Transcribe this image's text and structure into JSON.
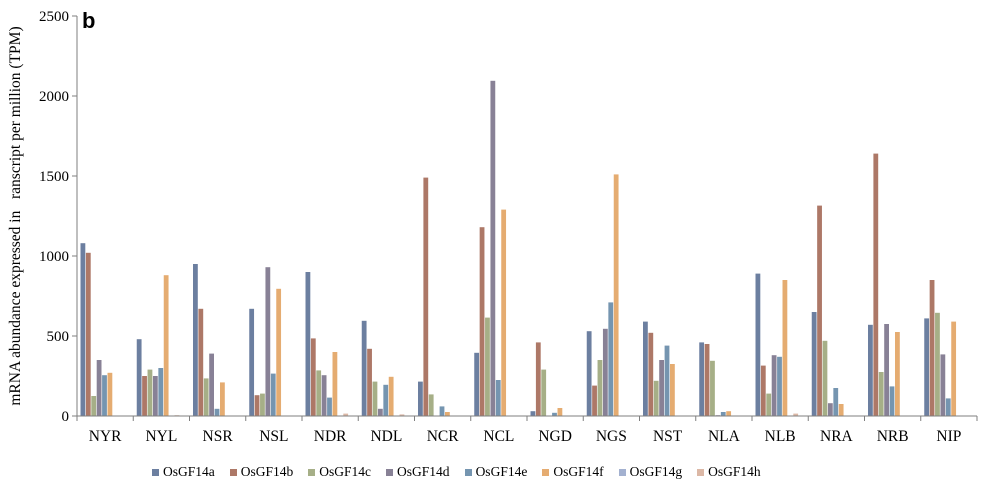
{
  "chart_data": {
    "type": "bar",
    "panel_label": "b",
    "ylabel": "mRNA abundance expressed in   ranscript per million (TPM)",
    "xlabel": "",
    "ylim": [
      0,
      2500
    ],
    "yticks": [
      "0",
      "500",
      "1000",
      "1500",
      "2000",
      "2500"
    ],
    "grid": false,
    "legend_position": "bottom",
    "categories": [
      "NYR",
      "NYL",
      "NSR",
      "NSL",
      "NDR",
      "NDL",
      "NCR",
      "NCL",
      "NGD",
      "NGS",
      "NST",
      "NLA",
      "NLB",
      "NRA",
      "NRB",
      "NIP"
    ],
    "series": [
      {
        "name": "OsGF14a",
        "color": "#6c7fa0",
        "values": [
          1080,
          480,
          950,
          670,
          900,
          595,
          215,
          395,
          30,
          530,
          590,
          460,
          890,
          650,
          570,
          610
        ]
      },
      {
        "name": "OsGF14b",
        "color": "#ad7867",
        "values": [
          1020,
          250,
          670,
          130,
          485,
          420,
          1490,
          1180,
          460,
          190,
          520,
          450,
          315,
          1315,
          1640,
          850
        ]
      },
      {
        "name": "OsGF14c",
        "color": "#a6af87",
        "values": [
          125,
          290,
          235,
          140,
          285,
          215,
          135,
          615,
          290,
          350,
          220,
          345,
          140,
          470,
          275,
          645
        ]
      },
      {
        "name": "OsGF14d",
        "color": "#888196",
        "values": [
          350,
          250,
          390,
          930,
          255,
          45,
          0,
          2095,
          0,
          545,
          350,
          5,
          380,
          80,
          575,
          385
        ]
      },
      {
        "name": "OsGF14e",
        "color": "#7595b0",
        "values": [
          255,
          300,
          45,
          265,
          115,
          195,
          60,
          225,
          20,
          710,
          440,
          25,
          370,
          175,
          185,
          110
        ]
      },
      {
        "name": "OsGF14f",
        "color": "#e5ac71",
        "values": [
          270,
          880,
          210,
          795,
          400,
          245,
          25,
          1290,
          50,
          1510,
          325,
          30,
          850,
          75,
          525,
          590
        ]
      },
      {
        "name": "OsGF14g",
        "color": "#a3b1d0",
        "values": [
          0,
          0,
          0,
          0,
          0,
          0,
          0,
          0,
          0,
          0,
          0,
          0,
          0,
          0,
          0,
          0
        ]
      },
      {
        "name": "OsGF14h",
        "color": "#dcb8a6",
        "values": [
          0,
          5,
          0,
          0,
          15,
          10,
          0,
          0,
          0,
          0,
          0,
          0,
          15,
          0,
          0,
          0
        ]
      }
    ]
  }
}
